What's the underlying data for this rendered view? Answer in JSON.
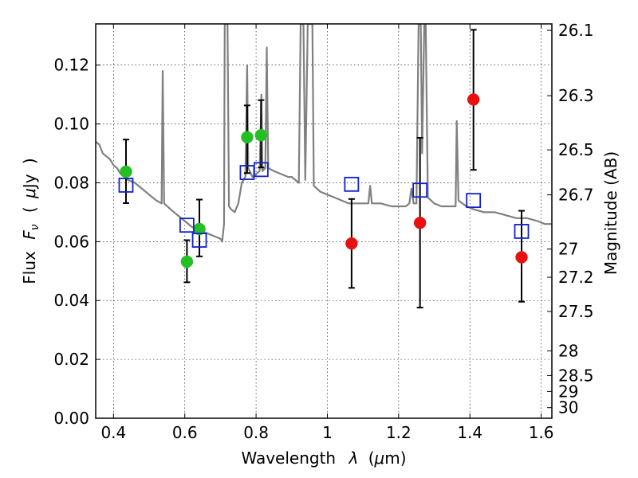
{
  "chart_data": {
    "type": "scatter",
    "xlabel_parts": [
      "Wavelength",
      "λ",
      "(",
      "μ",
      "m)"
    ],
    "ylabel_parts": [
      "Flux",
      "F",
      "ν",
      "(",
      "μ",
      "Jy",
      ")"
    ],
    "y2label": "Magnitude (AB)",
    "xlim": [
      0.35,
      1.63
    ],
    "ylim": [
      0.0,
      0.134
    ],
    "grid": true,
    "x_ticks": [
      0.4,
      0.6,
      0.8,
      1.0,
      1.2,
      1.4,
      1.6
    ],
    "x_tick_labels": [
      "0.4",
      "0.6",
      "0.8",
      "1",
      "1.2",
      "1.4",
      "1.6"
    ],
    "y_ticks": [
      0.0,
      0.02,
      0.04,
      0.06,
      0.08,
      0.1,
      0.12
    ],
    "y_tick_labels": [
      "0.00",
      "0.02",
      "0.04",
      "0.06",
      "0.08",
      "0.10",
      "0.12"
    ],
    "y2_ticks": [
      {
        "flux": 0.1318,
        "label": "26.1"
      },
      {
        "flux": 0.1096,
        "label": "26.3"
      },
      {
        "flux": 0.0912,
        "label": "26.5"
      },
      {
        "flux": 0.0759,
        "label": "26.7"
      },
      {
        "flux": 0.0575,
        "label": "27"
      },
      {
        "flux": 0.0479,
        "label": "27.2"
      },
      {
        "flux": 0.0363,
        "label": "27.5"
      },
      {
        "flux": 0.0229,
        "label": "28"
      },
      {
        "flux": 0.0145,
        "label": "28.5"
      },
      {
        "flux": 0.0091,
        "label": "29"
      },
      {
        "flux": 0.0036,
        "label": "30"
      }
    ],
    "series": [
      {
        "marker": "circle",
        "color": "#22c022",
        "points": [
          {
            "x": 0.435,
            "y": 0.0838,
            "yerr_low": 0.0731,
            "yerr_high": 0.0947
          },
          {
            "x": 0.606,
            "y": 0.0532,
            "yerr_low": 0.0462,
            "yerr_high": 0.0605
          },
          {
            "x": 0.641,
            "y": 0.0643,
            "yerr_low": 0.055,
            "yerr_high": 0.0743
          },
          {
            "x": 0.775,
            "y": 0.0955,
            "yerr_low": 0.0833,
            "yerr_high": 0.1063
          },
          {
            "x": 0.814,
            "y": 0.0962,
            "yerr_low": 0.0852,
            "yerr_high": 0.1081
          }
        ]
      },
      {
        "marker": "circle",
        "color": "#e81010",
        "points": [
          {
            "x": 1.068,
            "y": 0.0594,
            "yerr_low": 0.0443,
            "yerr_high": 0.0745
          },
          {
            "x": 1.26,
            "y": 0.0664,
            "yerr_low": 0.0376,
            "yerr_high": 0.0953
          },
          {
            "x": 1.41,
            "y": 0.1083,
            "yerr_low": 0.0844,
            "yerr_high": 0.132
          },
          {
            "x": 1.545,
            "y": 0.0547,
            "yerr_low": 0.0396,
            "yerr_high": 0.0705
          }
        ]
      },
      {
        "marker": "open-square",
        "color": "#1020d0",
        "points": [
          {
            "x": 0.435,
            "y": 0.0792
          },
          {
            "x": 0.606,
            "y": 0.0656
          },
          {
            "x": 0.641,
            "y": 0.0605
          },
          {
            "x": 0.775,
            "y": 0.0835
          },
          {
            "x": 0.814,
            "y": 0.0845
          },
          {
            "x": 1.068,
            "y": 0.0795
          },
          {
            "x": 1.26,
            "y": 0.0775
          },
          {
            "x": 1.41,
            "y": 0.074
          },
          {
            "x": 1.545,
            "y": 0.0635
          }
        ]
      }
    ],
    "model_spectrum": {
      "color": "#808080",
      "points": [
        [
          0.35,
          0.094
        ],
        [
          0.36,
          0.093
        ],
        [
          0.37,
          0.09
        ],
        [
          0.38,
          0.089
        ],
        [
          0.39,
          0.088
        ],
        [
          0.4,
          0.086
        ],
        [
          0.41,
          0.085
        ],
        [
          0.42,
          0.083
        ],
        [
          0.43,
          0.082
        ],
        [
          0.44,
          0.081
        ],
        [
          0.46,
          0.08
        ],
        [
          0.48,
          0.078
        ],
        [
          0.5,
          0.076
        ],
        [
          0.52,
          0.074
        ],
        [
          0.535,
          0.073
        ],
        [
          0.538,
          0.118
        ],
        [
          0.542,
          0.073
        ],
        [
          0.56,
          0.071
        ],
        [
          0.58,
          0.069
        ],
        [
          0.6,
          0.067
        ],
        [
          0.62,
          0.065
        ],
        [
          0.64,
          0.064
        ],
        [
          0.66,
          0.063
        ],
        [
          0.68,
          0.062
        ],
        [
          0.7,
          0.061
        ],
        [
          0.705,
          0.06
        ],
        [
          0.71,
          0.066
        ],
        [
          0.712,
          0.134
        ],
        [
          0.72,
          0.134
        ],
        [
          0.724,
          0.072
        ],
        [
          0.73,
          0.071
        ],
        [
          0.74,
          0.07
        ],
        [
          0.75,
          0.073
        ],
        [
          0.76,
          0.08
        ],
        [
          0.77,
          0.082
        ],
        [
          0.775,
          0.12
        ],
        [
          0.778,
          0.085
        ],
        [
          0.79,
          0.082
        ],
        [
          0.8,
          0.083
        ],
        [
          0.81,
          0.084
        ],
        [
          0.815,
          0.11
        ],
        [
          0.818,
          0.084
        ],
        [
          0.826,
          0.085
        ],
        [
          0.83,
          0.126
        ],
        [
          0.834,
          0.085
        ],
        [
          0.85,
          0.084
        ],
        [
          0.87,
          0.083
        ],
        [
          0.89,
          0.082
        ],
        [
          0.9,
          0.082
        ],
        [
          0.92,
          0.08
        ],
        [
          0.925,
          0.134
        ],
        [
          0.933,
          0.134
        ],
        [
          0.938,
          0.081
        ],
        [
          0.945,
          0.134
        ],
        [
          0.958,
          0.134
        ],
        [
          0.962,
          0.079
        ],
        [
          0.98,
          0.077
        ],
        [
          1.0,
          0.076
        ],
        [
          1.02,
          0.075
        ],
        [
          1.04,
          0.074
        ],
        [
          1.06,
          0.073
        ],
        [
          1.08,
          0.073
        ],
        [
          1.1,
          0.073
        ],
        [
          1.115,
          0.073
        ],
        [
          1.12,
          0.079
        ],
        [
          1.125,
          0.073
        ],
        [
          1.15,
          0.073
        ],
        [
          1.18,
          0.072
        ],
        [
          1.2,
          0.072
        ],
        [
          1.22,
          0.072
        ],
        [
          1.23,
          0.073
        ],
        [
          1.236,
          0.078
        ],
        [
          1.242,
          0.073
        ],
        [
          1.25,
          0.073
        ],
        [
          1.256,
          0.134
        ],
        [
          1.262,
          0.134
        ],
        [
          1.266,
          0.09
        ],
        [
          1.272,
          0.134
        ],
        [
          1.276,
          0.134
        ],
        [
          1.282,
          0.075
        ],
        [
          1.3,
          0.073
        ],
        [
          1.32,
          0.072
        ],
        [
          1.34,
          0.072
        ],
        [
          1.36,
          0.072
        ],
        [
          1.363,
          0.101
        ],
        [
          1.368,
          0.074
        ],
        [
          1.39,
          0.072
        ],
        [
          1.41,
          0.071
        ],
        [
          1.44,
          0.07
        ],
        [
          1.47,
          0.07
        ],
        [
          1.5,
          0.069
        ],
        [
          1.53,
          0.068
        ],
        [
          1.56,
          0.068
        ],
        [
          1.59,
          0.067
        ],
        [
          1.61,
          0.066
        ],
        [
          1.63,
          0.066
        ]
      ]
    }
  }
}
